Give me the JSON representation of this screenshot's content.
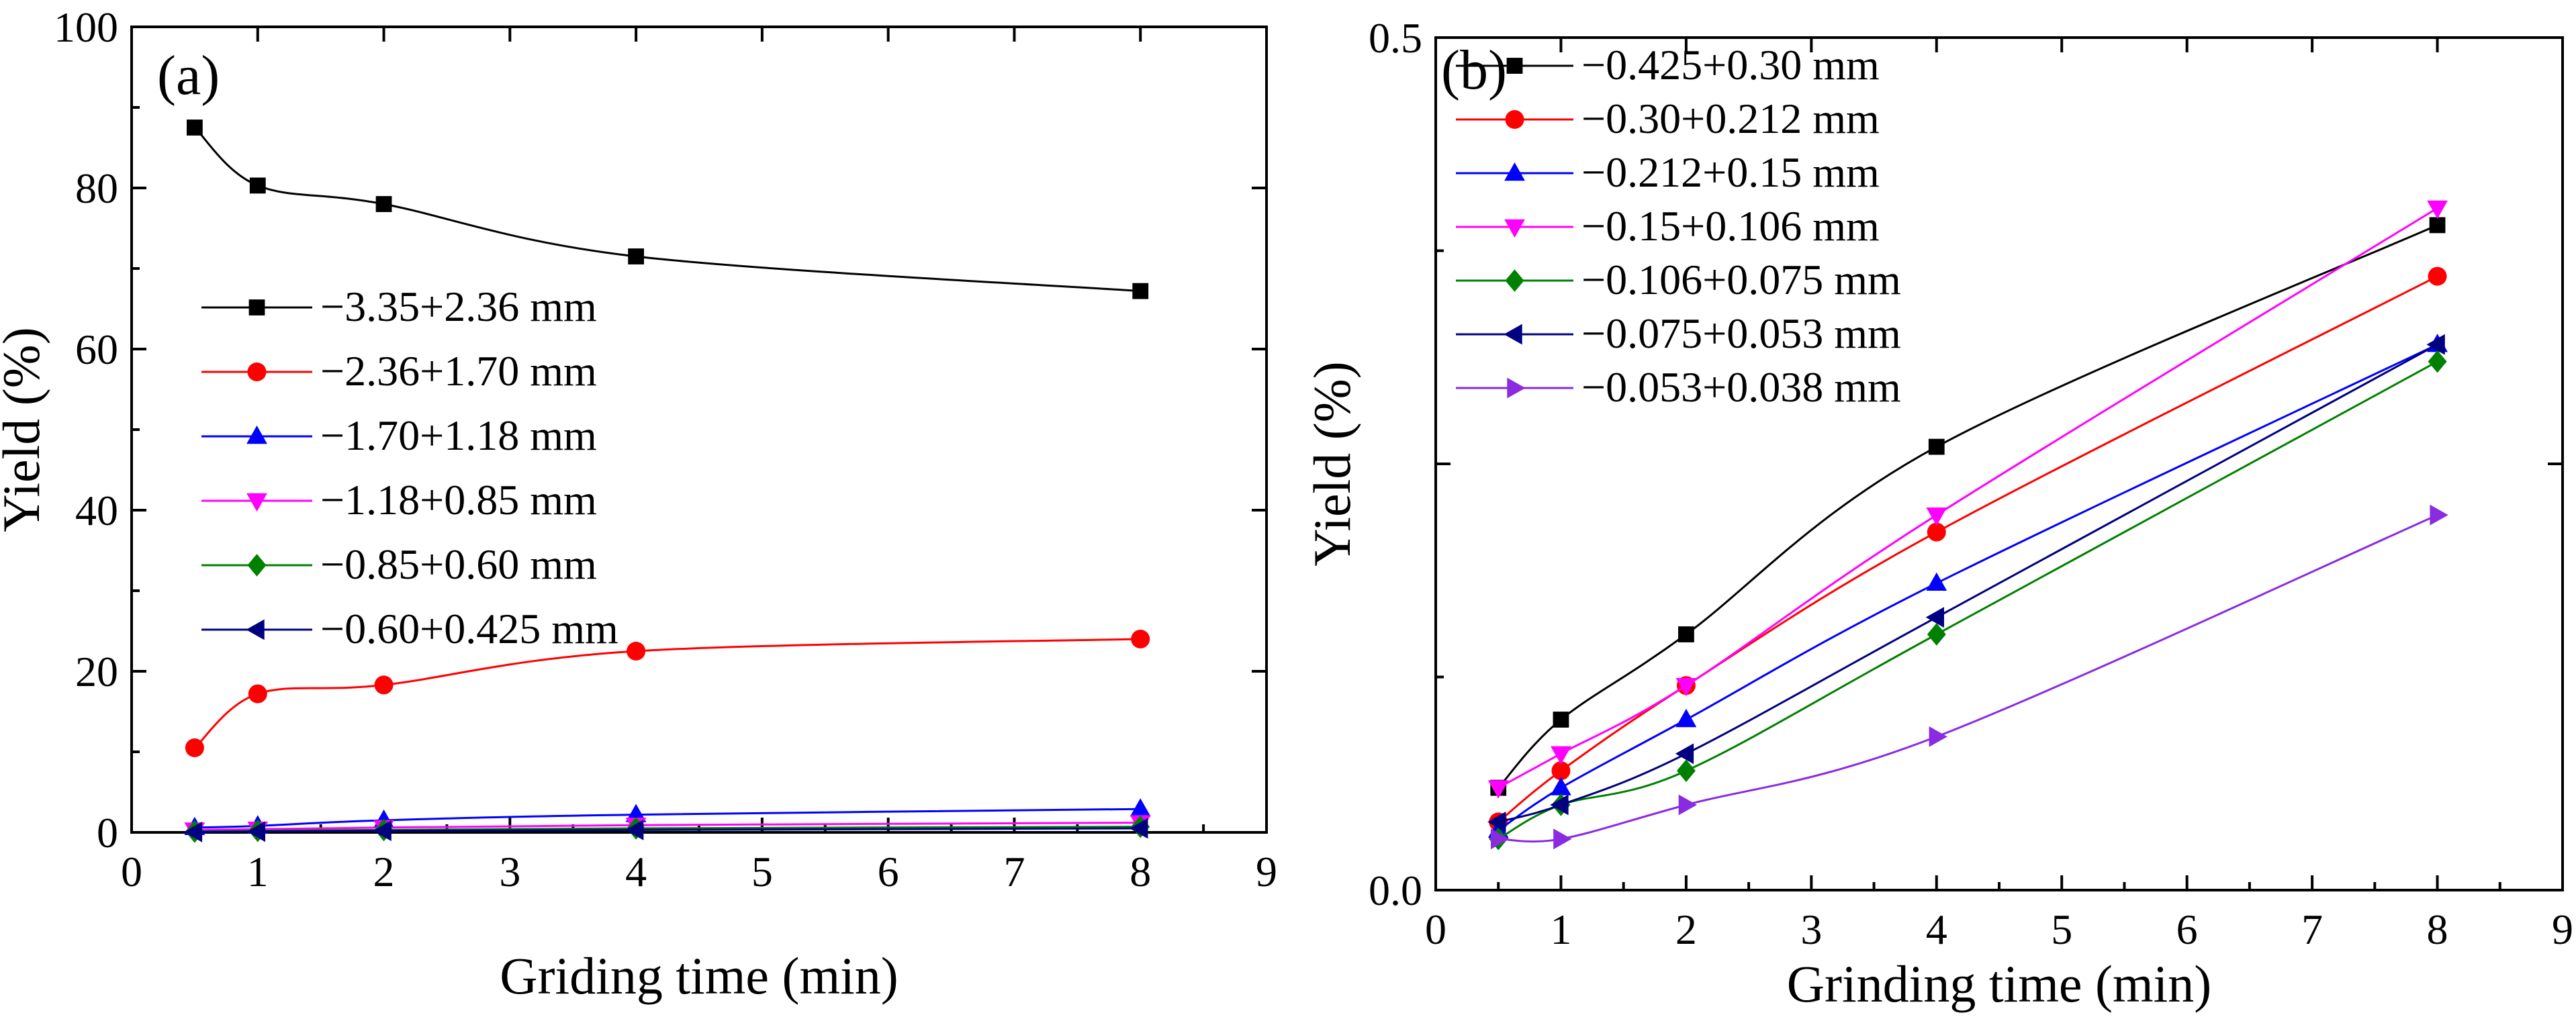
{
  "chart_data": [
    {
      "type": "line",
      "panel_label": "(a)",
      "title": "",
      "xlabel": "Griding time (min)",
      "ylabel": "Yield (%)",
      "xlim": [
        0,
        9
      ],
      "ylim": [
        0,
        100
      ],
      "xticks": [
        0,
        1,
        2,
        3,
        4,
        5,
        6,
        7,
        8,
        9
      ],
      "xtick_labels": [
        "0",
        "1",
        "2",
        "3",
        "4",
        "5",
        "6",
        "7",
        "8",
        "9"
      ],
      "yticks": [
        0,
        20,
        40,
        60,
        80,
        100
      ],
      "ytick_labels": [
        "0",
        "20",
        "40",
        "60",
        "80",
        "100"
      ],
      "legend_position": "center-left",
      "x": [
        0.5,
        1,
        2,
        4,
        8
      ],
      "series": [
        {
          "name": "−3.35+2.36 mm",
          "color": "#000000",
          "marker": "square",
          "values": [
            87.5,
            80.3,
            78.0,
            71.5,
            67.2
          ]
        },
        {
          "name": "−2.36+1.70 mm",
          "color": "#ff0000",
          "marker": "circle",
          "values": [
            10.5,
            17.2,
            18.3,
            22.5,
            24.0
          ]
        },
        {
          "name": "−1.70+1.18 mm",
          "color": "#0000ff",
          "marker": "triangle-up",
          "values": [
            0.6,
            0.8,
            1.5,
            2.2,
            2.9
          ]
        },
        {
          "name": "−1.18+0.85 mm",
          "color": "#ff00ff",
          "marker": "triangle-down",
          "values": [
            0.3,
            0.4,
            0.6,
            0.9,
            1.2
          ]
        },
        {
          "name": "−0.85+0.60 mm",
          "color": "#008000",
          "marker": "diamond",
          "values": [
            0.1,
            0.2,
            0.3,
            0.5,
            0.7
          ]
        },
        {
          "name": "−0.60+0.425 mm",
          "color": "#000080",
          "marker": "triangle-left",
          "values": [
            0.05,
            0.1,
            0.2,
            0.3,
            0.5
          ]
        }
      ]
    },
    {
      "type": "line",
      "panel_label": "(b)",
      "title": "",
      "xlabel": "Grinding time (min)",
      "ylabel": "Yield (%)",
      "xlim": [
        0,
        9
      ],
      "ylim": [
        0,
        0.5
      ],
      "xticks": [
        0,
        1,
        2,
        3,
        4,
        5,
        6,
        7,
        8,
        9
      ],
      "xtick_labels": [
        "0",
        "1",
        "2",
        "3",
        "4",
        "5",
        "6",
        "7",
        "8",
        "9"
      ],
      "yticks": [
        0,
        0.25,
        0.5
      ],
      "ytick_labels": [
        "0.0",
        "",
        "0.5"
      ],
      "legend_position": "top-left",
      "x": [
        0.5,
        1,
        2,
        4,
        8
      ],
      "series": [
        {
          "name": "−0.425+0.30 mm",
          "color": "#000000",
          "marker": "square",
          "values": [
            0.06,
            0.1,
            0.15,
            0.26,
            0.39
          ]
        },
        {
          "name": "−0.30+0.212 mm",
          "color": "#ff0000",
          "marker": "circle",
          "values": [
            0.04,
            0.07,
            0.12,
            0.21,
            0.36
          ]
        },
        {
          "name": "−0.212+0.15 mm",
          "color": "#0000ff",
          "marker": "triangle-up",
          "values": [
            0.035,
            0.06,
            0.1,
            0.18,
            0.32
          ]
        },
        {
          "name": "−0.15+0.106 mm",
          "color": "#ff00ff",
          "marker": "triangle-down",
          "values": [
            0.06,
            0.08,
            0.12,
            0.22,
            0.4
          ]
        },
        {
          "name": "−0.106+0.075 mm",
          "color": "#008000",
          "marker": "diamond",
          "values": [
            0.03,
            0.05,
            0.07,
            0.15,
            0.31
          ]
        },
        {
          "name": "−0.075+0.053 mm",
          "color": "#000080",
          "marker": "triangle-left",
          "values": [
            0.04,
            0.05,
            0.08,
            0.16,
            0.32
          ]
        },
        {
          "name": "−0.053+0.038 mm",
          "color": "#8a2be2",
          "marker": "triangle-right",
          "values": [
            0.03,
            0.03,
            0.05,
            0.09,
            0.22
          ]
        }
      ]
    }
  ]
}
